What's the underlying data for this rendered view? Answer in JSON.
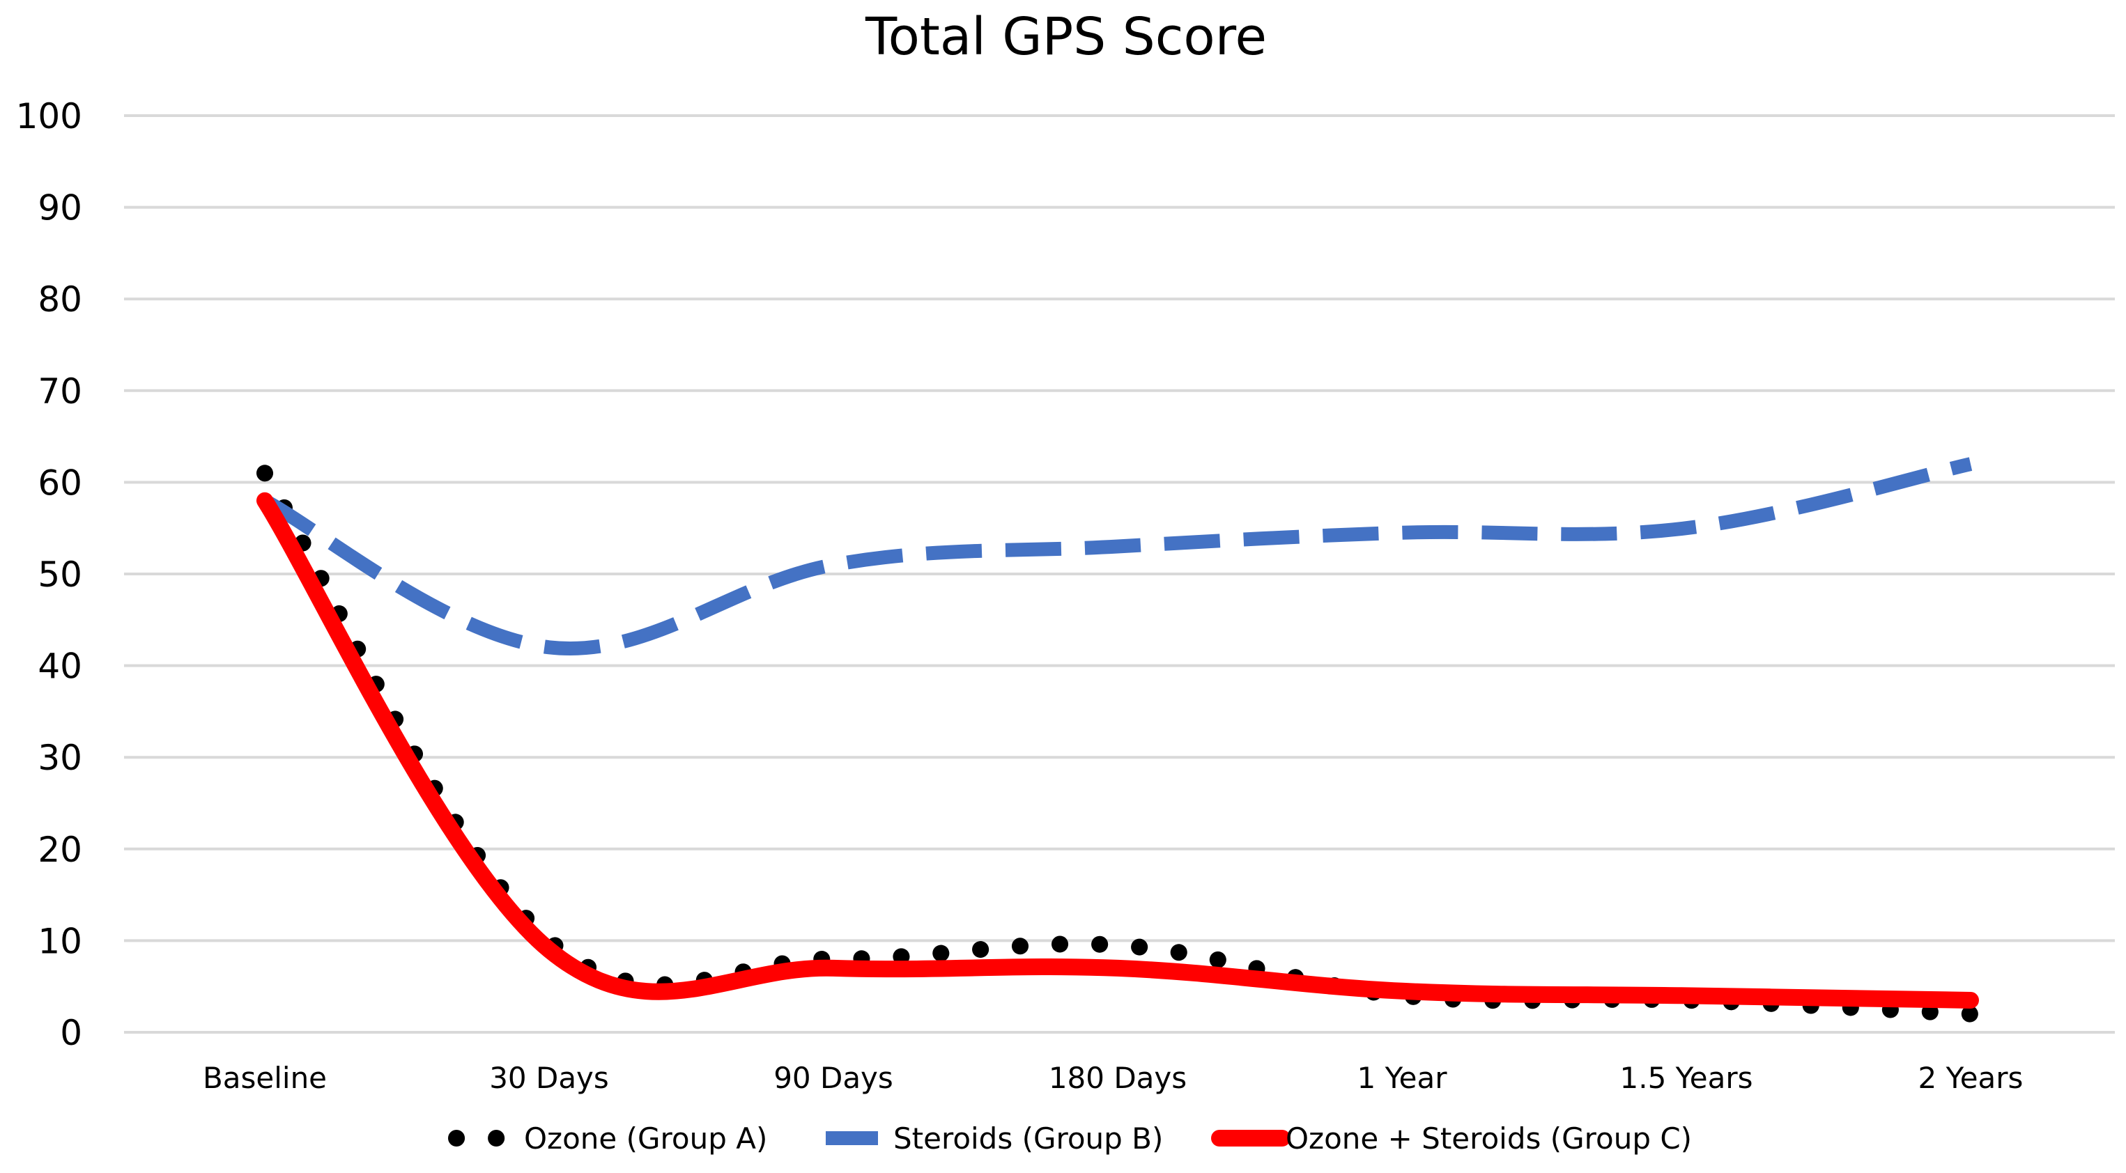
{
  "chart_data": {
    "type": "line",
    "title": "Total GPS Score",
    "xlabel": "",
    "ylabel": "",
    "categories": [
      "Baseline",
      "30 Days",
      "90 Days",
      "180 Days",
      "1 Year",
      "1.5 Years",
      "2 Years"
    ],
    "ylim": [
      0,
      100
    ],
    "yticks": [
      0,
      10,
      20,
      30,
      40,
      50,
      60,
      70,
      80,
      90,
      100
    ],
    "grid": true,
    "legend_position": "bottom",
    "series": [
      {
        "name": "Ozone (Group A)",
        "values": [
          61,
          10,
          8,
          9.5,
          4,
          3.5,
          2
        ],
        "color": "#000000",
        "style": "dotted"
      },
      {
        "name": "Steroids (Group B)",
        "values": [
          58,
          42,
          51,
          53,
          54.5,
          55,
          62
        ],
        "color": "#4472c4",
        "style": "dashed"
      },
      {
        "name": "Ozone + Steroids (Group C)",
        "values": [
          58,
          9,
          7,
          7,
          4.5,
          4,
          3.5
        ],
        "color": "#ff0000",
        "style": "solid"
      }
    ]
  }
}
